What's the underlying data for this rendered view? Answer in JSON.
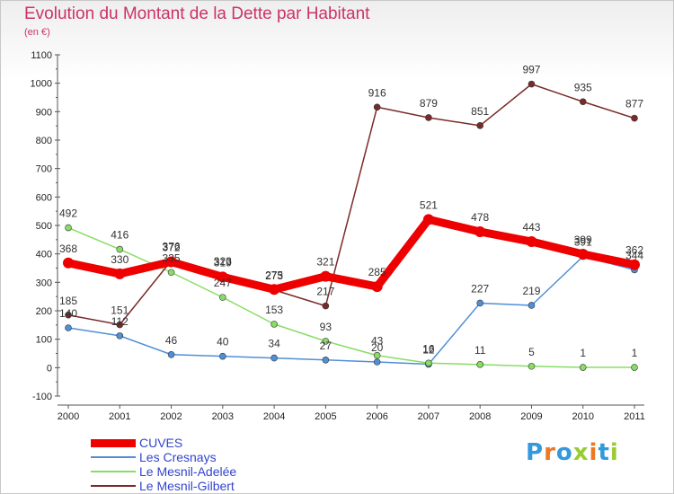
{
  "title": "Evolution du Montant de la Dette par Habitant",
  "subtitle": "(en €)",
  "brand": "Proxiti",
  "chart_data": {
    "type": "line",
    "title": "Evolution du Montant de la Dette par Habitant",
    "subtitle": "(en €)",
    "x": [
      "2000",
      "2001",
      "2002",
      "2003",
      "2004",
      "2005",
      "2006",
      "2007",
      "2008",
      "2009",
      "2010",
      "2011"
    ],
    "ylim": [
      -100,
      1100
    ],
    "yticks": [
      -100,
      0,
      100,
      200,
      300,
      400,
      500,
      600,
      700,
      800,
      900,
      1000,
      1100
    ],
    "grid": false,
    "legend": "bottom-left",
    "series": [
      {
        "name": "CUVES",
        "color": "#ee0000",
        "values": [
          368,
          330,
          372,
          319,
          275,
          321,
          285,
          521,
          478,
          443,
          399,
          362
        ]
      },
      {
        "name": "Les Cresnays",
        "color": "#4f8fd6",
        "values": [
          140,
          112,
          46,
          40,
          34,
          27,
          20,
          12,
          227,
          219,
          391,
          344
        ]
      },
      {
        "name": "Le Mesnil-Adelée",
        "color": "#88dd66",
        "values": [
          492,
          416,
          335,
          247,
          153,
          93,
          43,
          16,
          11,
          5,
          1,
          1
        ]
      },
      {
        "name": "Le Mesnil-Gilbert",
        "color": "#7a2a2a",
        "values": [
          185,
          151,
          376,
          323,
          273,
          217,
          916,
          879,
          851,
          997,
          935,
          877
        ]
      }
    ]
  }
}
